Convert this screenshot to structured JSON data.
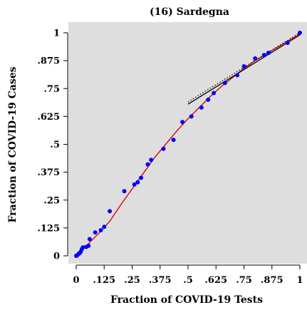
{
  "chart_data": {
    "type": "scatter",
    "title": "(16) Sardegna",
    "xlabel": "Fraction of COVID-19 Tests",
    "ylabel": "Fraction of COVID-19 Cases",
    "xlim": [
      0,
      1
    ],
    "ylim": [
      0,
      1
    ],
    "x_ticks": [
      "0",
      ".125",
      ".25",
      ".375",
      ".5",
      ".625",
      ".75",
      ".875",
      "1"
    ],
    "y_ticks": [
      "0",
      ".125",
      ".25",
      ".375",
      ".5",
      ".625",
      ".75",
      ".875",
      "1"
    ],
    "grid": false,
    "panel_color": "#dedede",
    "series": [
      {
        "type": "scatter",
        "color": "#0000ff",
        "points": [
          [
            0.0,
            0.0
          ],
          [
            0.005,
            0.003
          ],
          [
            0.01,
            0.008
          ],
          [
            0.015,
            0.012
          ],
          [
            0.02,
            0.018
          ],
          [
            0.025,
            0.03
          ],
          [
            0.03,
            0.038
          ],
          [
            0.045,
            0.04
          ],
          [
            0.055,
            0.045
          ],
          [
            0.06,
            0.075
          ],
          [
            0.085,
            0.105
          ],
          [
            0.11,
            0.115
          ],
          [
            0.125,
            0.13
          ],
          [
            0.15,
            0.2
          ],
          [
            0.215,
            0.29
          ],
          [
            0.26,
            0.32
          ],
          [
            0.275,
            0.33
          ],
          [
            0.29,
            0.35
          ],
          [
            0.32,
            0.41
          ],
          [
            0.335,
            0.43
          ],
          [
            0.39,
            0.48
          ],
          [
            0.435,
            0.52
          ],
          [
            0.475,
            0.6
          ],
          [
            0.515,
            0.625
          ],
          [
            0.56,
            0.665
          ],
          [
            0.59,
            0.7
          ],
          [
            0.615,
            0.73
          ],
          [
            0.665,
            0.775
          ],
          [
            0.72,
            0.81
          ],
          [
            0.75,
            0.85
          ],
          [
            0.8,
            0.885
          ],
          [
            0.84,
            0.9
          ],
          [
            0.86,
            0.91
          ],
          [
            0.945,
            0.955
          ],
          [
            1.0,
            1.0
          ]
        ]
      },
      {
        "type": "line",
        "color": "#e00000",
        "style": "solid",
        "points": [
          [
            0.0,
            0.0
          ],
          [
            0.05,
            0.05
          ],
          [
            0.1,
            0.1
          ],
          [
            0.15,
            0.155
          ],
          [
            0.2,
            0.23
          ],
          [
            0.25,
            0.3
          ],
          [
            0.3,
            0.37
          ],
          [
            0.35,
            0.44
          ],
          [
            0.4,
            0.5
          ],
          [
            0.45,
            0.56
          ],
          [
            0.5,
            0.615
          ],
          [
            0.55,
            0.665
          ],
          [
            0.6,
            0.715
          ],
          [
            0.65,
            0.76
          ],
          [
            0.7,
            0.8
          ],
          [
            0.75,
            0.84
          ],
          [
            0.8,
            0.875
          ],
          [
            0.85,
            0.905
          ],
          [
            0.9,
            0.935
          ],
          [
            0.95,
            0.965
          ],
          [
            1.0,
            0.995
          ]
        ]
      },
      {
        "type": "line",
        "color": "#000000",
        "style": "solid",
        "points": [
          [
            0.5,
            0.68
          ],
          [
            1.0,
            0.99
          ]
        ]
      },
      {
        "type": "line",
        "color": "#000000",
        "style": "dotted",
        "points": [
          [
            0.5,
            0.69
          ],
          [
            1.0,
            1.0
          ]
        ]
      }
    ]
  }
}
